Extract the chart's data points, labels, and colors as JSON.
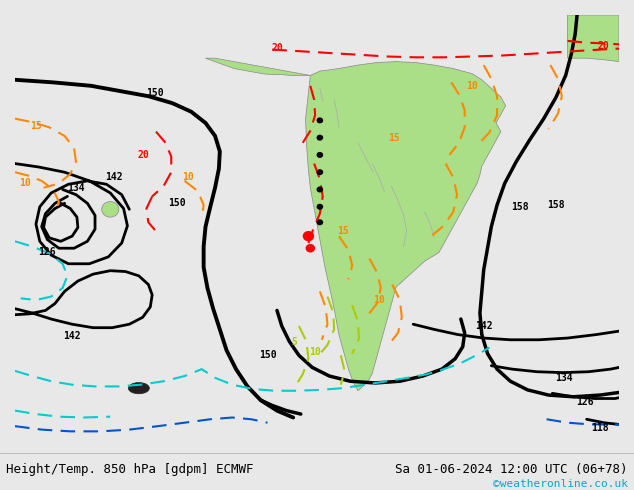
{
  "title_left": "Height/Temp. 850 hPa [gdpm] ECMWF",
  "title_right": "Sa 01-06-2024 12:00 UTC (06+78)",
  "credit": "©weatheronline.co.uk",
  "credit_color": "#00aacc",
  "bg_color": "#e8e8e8",
  "land_color": "#aade87",
  "fig_width": 6.34,
  "fig_height": 4.9,
  "dpi": 100,
  "footer_fontsize": 9,
  "credit_fontsize": 8
}
